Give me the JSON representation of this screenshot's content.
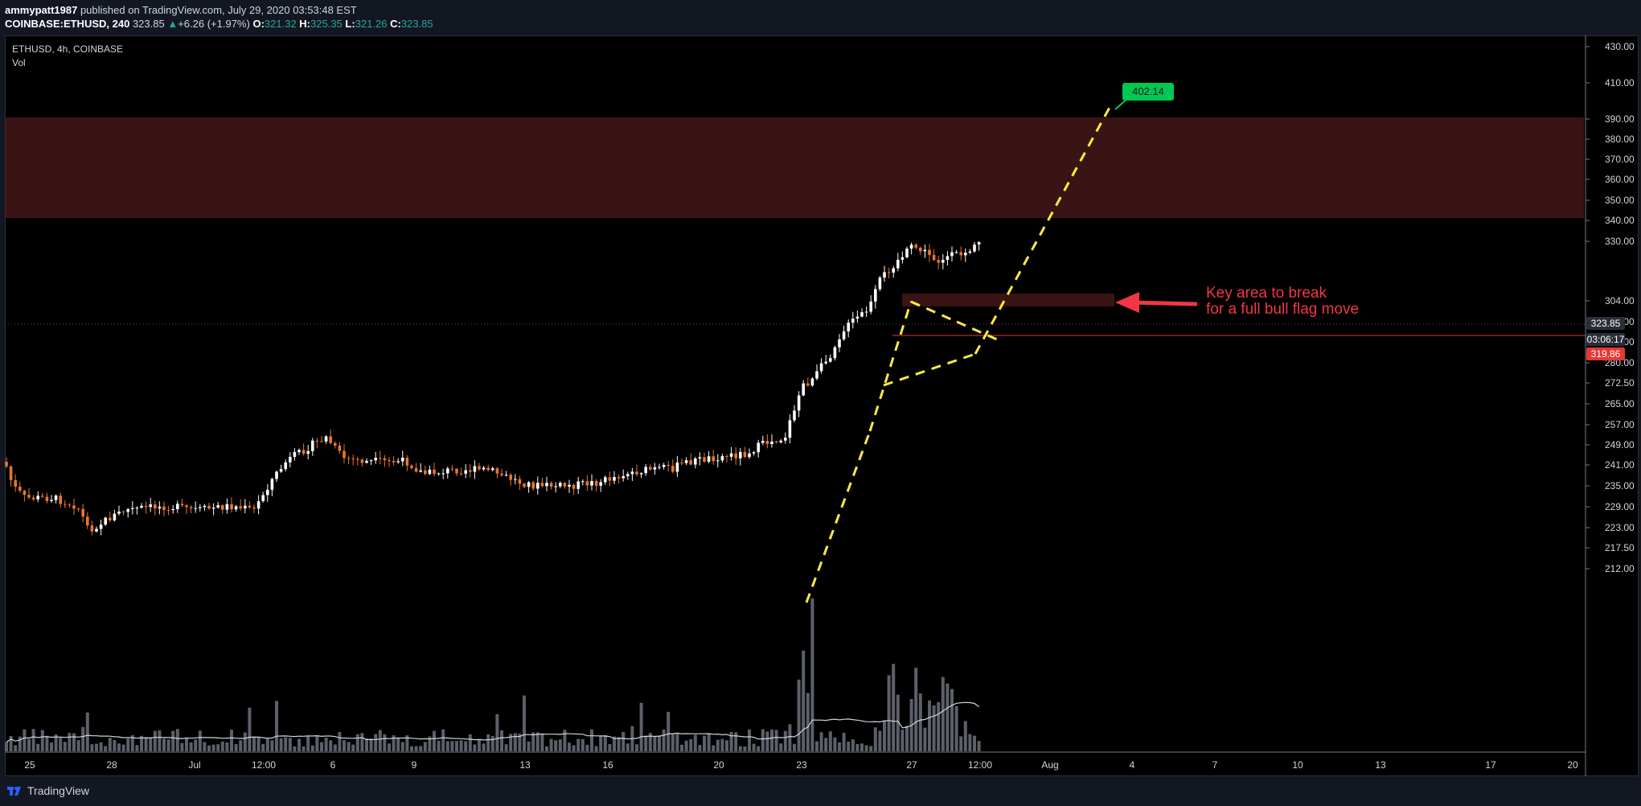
{
  "header": {
    "author": "ammypatt1987",
    "published_text": " published on TradingView.com, July 29, 2020 03:53:48 EST",
    "symbol_line": "COINBASE:ETHUSD, 240",
    "last_price": "323.85",
    "change_arrow": "▲",
    "change": "+6.26 (+1.97%)",
    "open_label": "O:",
    "open": "321.32",
    "high_label": "H:",
    "high": "325.35",
    "low_label": "L:",
    "low": "321.26",
    "close_label": "C:",
    "close": "323.85"
  },
  "legend": {
    "symbol": "ETHUSD, 4h, COINBASE",
    "volume": "Vol"
  },
  "price_axis_labels": [
    "430.00",
    "410.00",
    "390.00",
    "380.00",
    "370.00",
    "360.00",
    "350.00",
    "340.00",
    "330.00",
    "304.00",
    "296.00",
    "288.00",
    "280.00",
    "272.50",
    "265.00",
    "257.00",
    "249.00",
    "241.00",
    "235.00",
    "229.00",
    "223.00",
    "217.50",
    "212.00"
  ],
  "time_axis_labels": [
    "25",
    "28",
    "Jul",
    "12:00",
    "6",
    "9",
    "13",
    "16",
    "20",
    "23",
    "27",
    "12:00",
    "Aug",
    "4",
    "7",
    "10",
    "13",
    "17",
    "20"
  ],
  "badges": {
    "last_price": "323.85",
    "countdown": "03:06:17",
    "line_price": "319.86",
    "target": "402.14"
  },
  "annotation": {
    "line1": "Key area to break",
    "line2": "for a full bull flag move"
  },
  "footer": {
    "brand": "TradingView"
  },
  "colors": {
    "up_candle": "#ffffff",
    "down_candle": "#e8762c",
    "resistance_zone": "#3a1414",
    "trend_lines": "#ffeb3b",
    "annotation": "#f23645",
    "target": "#00c853"
  },
  "chart_data": {
    "type": "candlestick",
    "interval": "4h",
    "grid": false,
    "resistance_zone": [
      360.5,
      398
    ],
    "key_area": [
      329.5,
      334
    ],
    "horizontal_line": 319.86,
    "target": 402.14,
    "volume_series": true
  }
}
